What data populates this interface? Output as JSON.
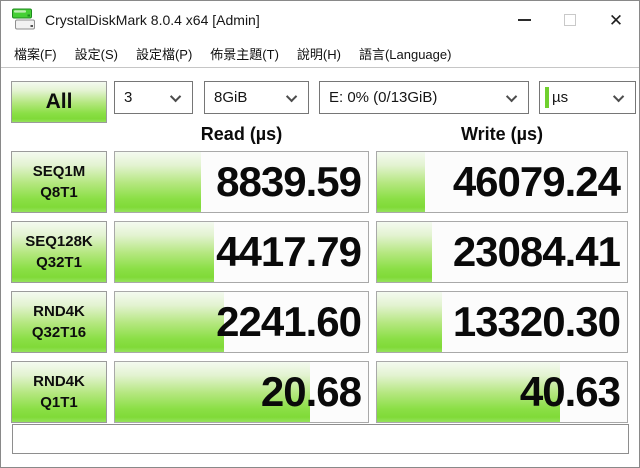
{
  "window": {
    "title": "CrystalDiskMark 8.0.4 x64 [Admin]"
  },
  "menu": {
    "items": [
      {
        "id": "file",
        "label": "檔案(F)"
      },
      {
        "id": "settings",
        "label": "設定(S)"
      },
      {
        "id": "profile",
        "label": "設定檔(P)"
      },
      {
        "id": "theme",
        "label": "佈景主題(T)"
      },
      {
        "id": "help",
        "label": "說明(H)"
      },
      {
        "id": "language",
        "label": "語言(Language)"
      }
    ]
  },
  "toolbar": {
    "all_label": "All",
    "test_count": "3",
    "test_size": "8GiB",
    "target_drive": "E: 0% (0/13GiB)",
    "unit": "µs"
  },
  "headers": {
    "read": "Read (µs)",
    "write": "Write (µs)"
  },
  "results": [
    {
      "name_line1": "SEQ1M",
      "name_line2": "Q8T1",
      "read_value": "8839.59",
      "read_bar": 34,
      "write_value": "46079.24",
      "write_bar": 19
    },
    {
      "name_line1": "SEQ128K",
      "name_line2": "Q32T1",
      "read_value": "4417.79",
      "read_bar": 39,
      "write_value": "23084.41",
      "write_bar": 22
    },
    {
      "name_line1": "RND4K",
      "name_line2": "Q32T16",
      "read_value": "2241.60",
      "read_bar": 43,
      "write_value": "13320.30",
      "write_bar": 26
    },
    {
      "name_line1": "RND4K",
      "name_line2": "Q1T1",
      "read_value": "20.68",
      "read_bar": 77,
      "write_value": "40.63",
      "write_bar": 73
    }
  ],
  "comment_field": {
    "value": "",
    "placeholder": ""
  },
  "colors": {
    "accent_green": "#80da38",
    "green_gradient_top": "#f4faf0",
    "green_gradient_bottom": "#95e25c",
    "border_gray": "#9b9b9b"
  }
}
